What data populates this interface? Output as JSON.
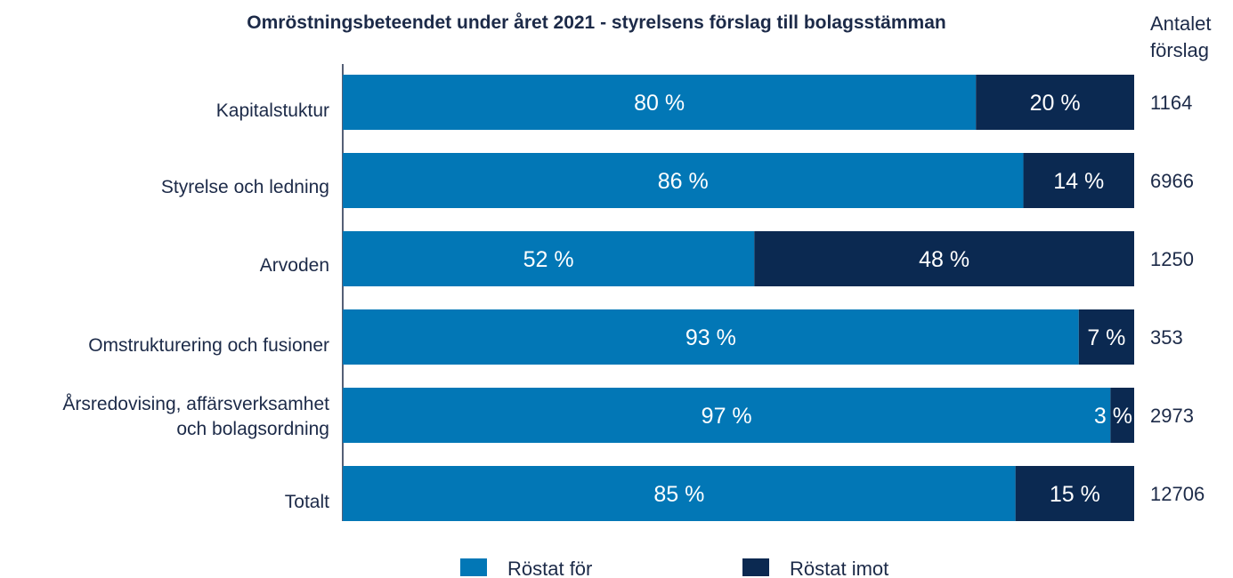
{
  "title": "Omröstningsbeteendet under året 2021 - styrelsens förslag till bolagsstämman",
  "count_header": [
    "Antalet",
    "förslag"
  ],
  "colors": {
    "for": "#0277b6",
    "imot": "#0b2951",
    "label_light": "#ffffff",
    "text": "#1c2a48"
  },
  "chart_data": {
    "type": "bar",
    "orientation": "horizontal",
    "stacked": true,
    "percent_stacked": true,
    "categories": [
      [
        "Kapitalstuktur"
      ],
      [
        "Styrelse och ledning"
      ],
      [
        "Arvoden"
      ],
      [
        "Omstrukturering och fusioner"
      ],
      [
        "Årsredovising, affärsverksamhet",
        "och bolagsordning"
      ],
      [
        "Totalt"
      ]
    ],
    "series": [
      {
        "name": "Röstat för",
        "values": [
          80,
          86,
          52,
          93,
          97,
          85
        ],
        "labels": [
          "80 %",
          "86 %",
          "52 %",
          "93 %",
          "97 %",
          "85 %"
        ]
      },
      {
        "name": "Röstat imot",
        "values": [
          20,
          14,
          48,
          7,
          3,
          15
        ],
        "labels": [
          "20 %",
          "14 %",
          "48 %",
          "7 %",
          "3 %",
          "15 %"
        ]
      }
    ],
    "counts": [
      "1164",
      "6966",
      "1250",
      "353",
      "2973",
      "12706"
    ],
    "xlim": [
      0,
      100
    ],
    "grid": false,
    "legend": "bottom"
  }
}
